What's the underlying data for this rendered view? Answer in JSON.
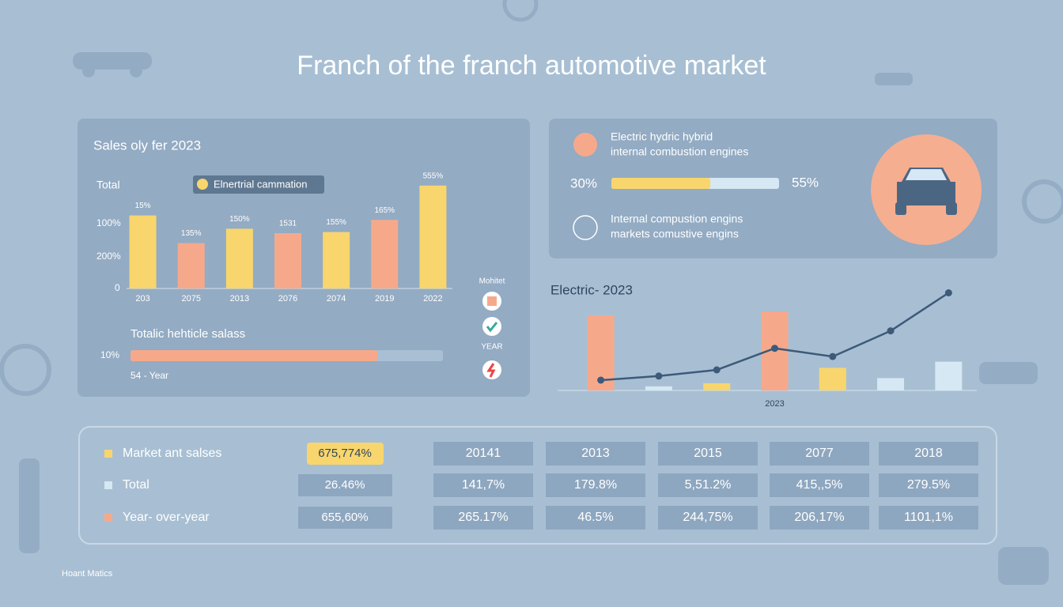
{
  "title": "Franch of the franch automotive market",
  "left_panel": {
    "heading": "Sales oly fer 2023",
    "axis_labels": [
      "Total",
      "100%",
      "200%",
      "0"
    ],
    "legend": "Elnertrial cammation",
    "side_labels": [
      "Mohitet",
      "YEAR"
    ],
    "progress_title": "Totalic hehticle salass",
    "progress_label": "10%",
    "progress": 79,
    "progress_caption": "54 - Year"
  },
  "chart_data": [
    {
      "type": "bar",
      "categories": [
        "203",
        "2075",
        "2013",
        "2076",
        "2074",
        "2019",
        "2022"
      ],
      "values": [
        66,
        41,
        54,
        50,
        51,
        62,
        93
      ],
      "colors": [
        "#f8d66d",
        "#f6a98a",
        "#f8d66d",
        "#f6a98a",
        "#f8d66d",
        "#f6a98a",
        "#f8d66d"
      ],
      "annotations": [
        "15%",
        "135%",
        "150%",
        "1531",
        "155%",
        "165%",
        "555%"
      ],
      "ylim": [
        0,
        100
      ]
    },
    {
      "type": "bar",
      "title": "Electric- 2023",
      "categories": [
        null,
        null,
        null,
        "2023",
        null,
        null,
        null
      ],
      "series": [
        {
          "type": "bar",
          "colors": [
            "#f6a98a",
            "#d5e8f3",
            "#f8d66d",
            "#f6a98a",
            "#f8d66d",
            "#d5e8f3",
            "#d5e8f3"
          ],
          "values": [
            73,
            4,
            7,
            77,
            22,
            12,
            28
          ]
        },
        {
          "type": "line",
          "color": "#3d5a7a",
          "values": [
            10,
            14,
            20,
            41,
            33,
            58,
            95
          ]
        }
      ],
      "ylim": [
        0,
        100
      ]
    }
  ],
  "right_panel": {
    "line1": "Electric  hydric hybrid",
    "line2": "internal combustion engines",
    "left_pct": "30%",
    "bar_fill": 59,
    "right_pct": "55%",
    "line3": "Internal compustion engins",
    "line4": "markets comustive engins"
  },
  "table": {
    "row_labels": [
      "Market ant salses",
      "Total",
      "Year- over-year"
    ],
    "highlight_column": [
      "675,774%",
      "26.46%",
      "655,60%"
    ],
    "header": [
      "20141",
      "2013",
      "2015",
      "2077",
      "2018"
    ],
    "rows": [
      [
        "141,7%",
        "179.8%",
        "5,51.2%",
        "415,,5%",
        "279.5%"
      ],
      [
        "265.17%",
        "46.5%",
        "244,75%",
        "206,17%",
        "1101,1%"
      ]
    ]
  },
  "footer": "Hoant Matics"
}
